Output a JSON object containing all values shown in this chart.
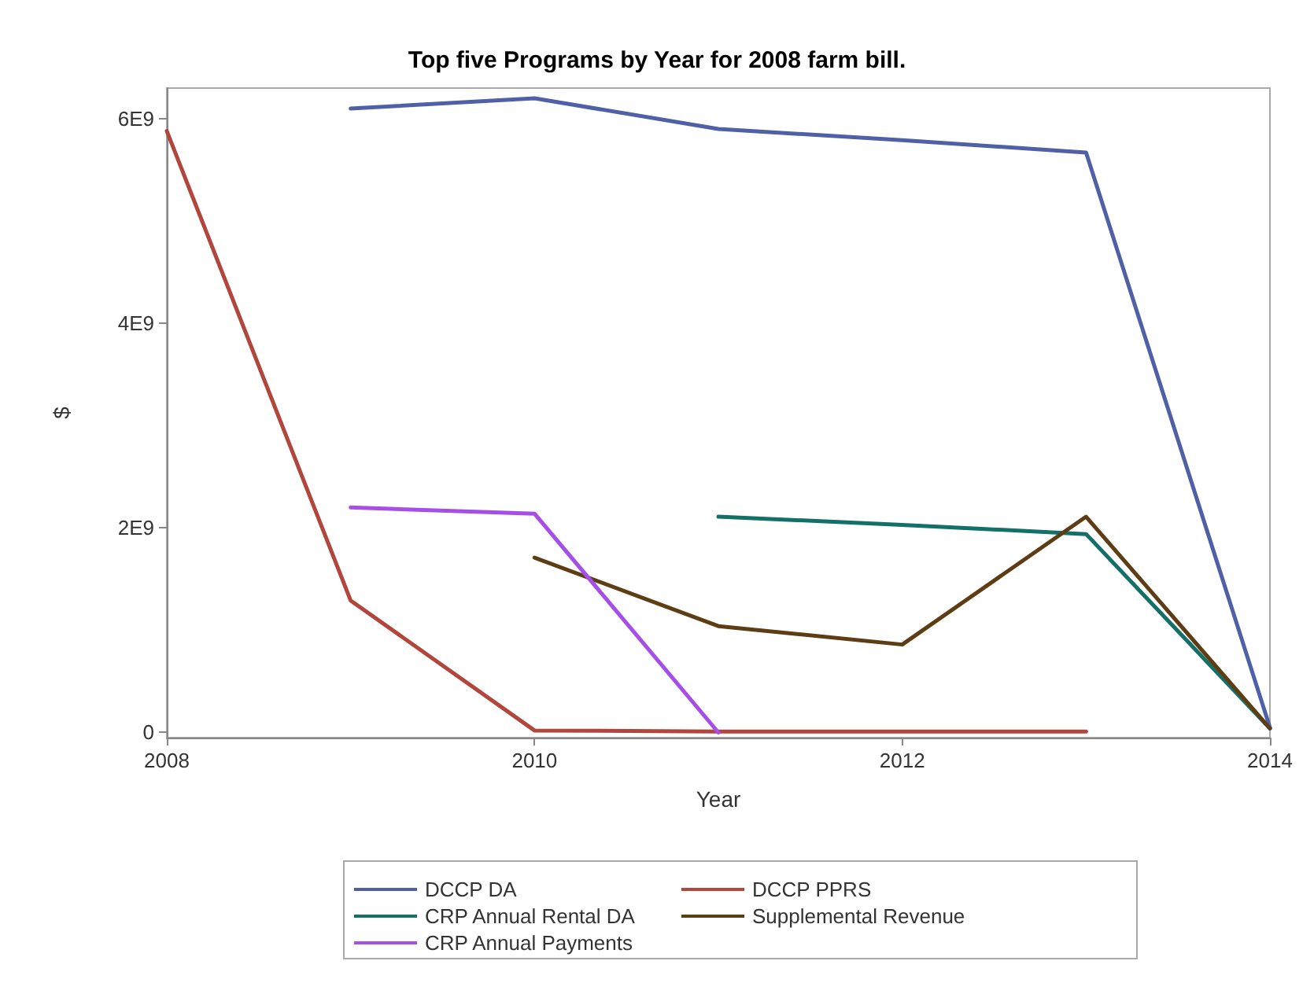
{
  "chart_data": {
    "type": "line",
    "title": "Top five Programs by Year for 2008 farm bill.",
    "xlabel": "Year",
    "ylabel": "$",
    "x": [
      2008,
      2009,
      2010,
      2011,
      2012,
      2013,
      2014
    ],
    "series": [
      {
        "name": "DCCP DA",
        "color": "#5060a6",
        "values": [
          null,
          6100000000.0,
          6200000000.0,
          5900000000.0,
          5790000000.0,
          5670000000.0,
          50000000.0
        ]
      },
      {
        "name": "DCCP PPRS",
        "color": "#b0463c",
        "values": [
          5880000000.0,
          1290000000.0,
          20000000.0,
          10000000.0,
          10000000.0,
          10000000.0,
          null
        ]
      },
      {
        "name": "CRP Annual Rental DA",
        "color": "#137068",
        "values": [
          null,
          null,
          null,
          2110000000.0,
          2030000000.0,
          1940000000.0,
          40000000.0
        ]
      },
      {
        "name": "Supplemental Revenue",
        "color": "#5e3d14",
        "values": [
          null,
          null,
          1710000000.0,
          1040000000.0,
          860000000.0,
          2110000000.0,
          40000000.0
        ]
      },
      {
        "name": "CRP Annual Payments",
        "color": "#a54ee8",
        "values": [
          null,
          2200000000.0,
          2140000000.0,
          0,
          null,
          null,
          null
        ]
      }
    ],
    "xlim": [
      2008,
      2014
    ],
    "xticks": [
      2008,
      2010,
      2012,
      2014
    ],
    "ylim": [
      -50000000.0,
      6300000000.0
    ],
    "yticks": [
      0,
      {
        "value": 2000000000.0,
        "label": "2E9"
      },
      {
        "value": 4000000000.0,
        "label": "4E9"
      },
      {
        "value": 6000000000.0,
        "label": "6E9"
      }
    ],
    "legend": "bottom",
    "grid": false,
    "marker": "none",
    "line_style": "solid"
  }
}
